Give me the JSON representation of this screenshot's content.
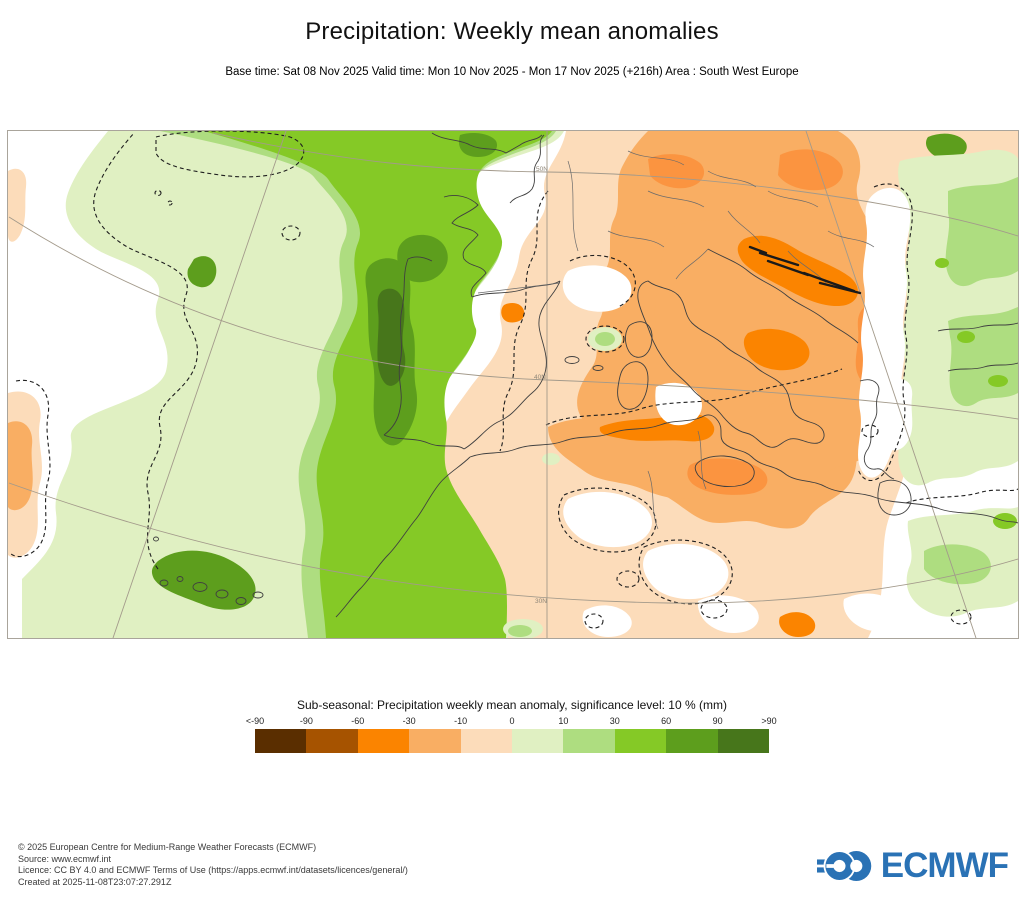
{
  "header": {
    "title": "Precipitation: Weekly mean anomalies",
    "subtitle": "Base time: Sat 08 Nov 2025 Valid time: Mon 10 Nov 2025 - Mon 17 Nov 2025 (+216h) Area : South West Europe"
  },
  "map": {
    "graticule_labels": {
      "lat50": "50N",
      "lat40": "40N",
      "lat30": "30N"
    },
    "region": "South West Europe",
    "positive_anomaly_color_core": "#85c926",
    "negative_anomaly_color_core": "#f9ae63"
  },
  "legend": {
    "title": "Sub-seasonal: Precipitation weekly mean anomaly, significance level: 10 % (mm)",
    "tick_labels": [
      "<-90",
      "-90",
      "-60",
      "-30",
      "-10",
      "0",
      "10",
      "30",
      "60",
      "90",
      ">90"
    ],
    "colors": [
      "#5a2e00",
      "#a65300",
      "#fb8400",
      "#f9ae63",
      "#fcdcba",
      "#e0f0c2",
      "#aedd80",
      "#85c926",
      "#5d9e1d",
      "#47761b"
    ]
  },
  "footer": {
    "lines": [
      "© 2025 European Centre for Medium-Range Weather Forecasts (ECMWF)",
      "Source: www.ecmwf.int",
      "Licence: CC BY 4.0 and ECMWF Terms of Use (https://apps.ecmwf.int/datasets/licences/general/)",
      "Created at 2025-11-08T23:07:27.291Z"
    ],
    "logo_text": "ECMWF",
    "logo_color": "#2a72b5"
  }
}
